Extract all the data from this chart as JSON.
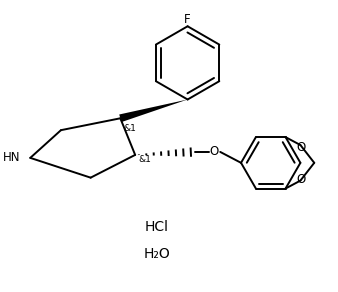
{
  "background_color": "#ffffff",
  "line_color": "#000000",
  "line_width": 1.4,
  "figsize": [
    3.38,
    2.92
  ],
  "dpi": 100,
  "hcl_text": "HCl",
  "h2o_text": "H₂O",
  "hn_text": "HN",
  "f_text": "F",
  "o_text": "O",
  "stereo_text": "&1",
  "font_size_label": 8.5,
  "font_size_stereo": 6.5,
  "font_size_bottom": 10
}
